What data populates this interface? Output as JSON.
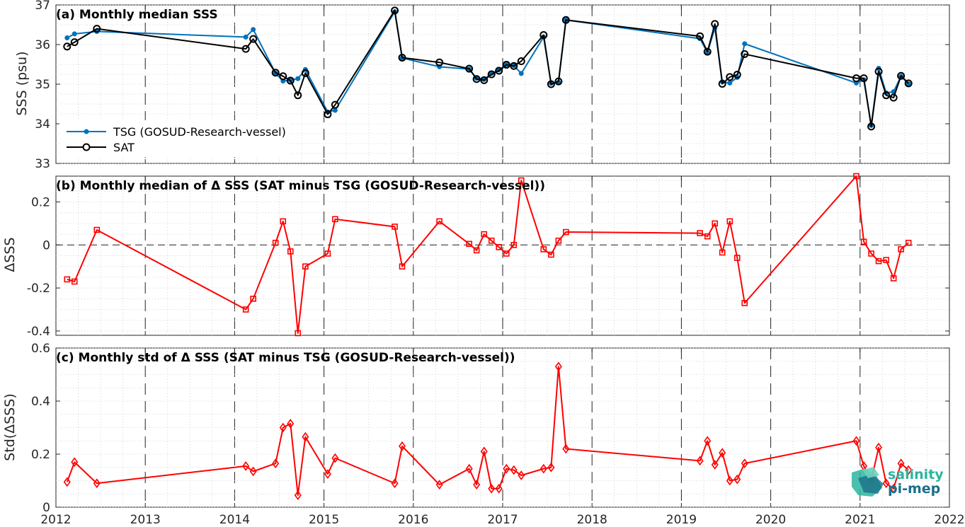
{
  "colors": {
    "tsg": "#0072BD",
    "sat": "#000000",
    "delta": "#FF0000",
    "logo_a": "#2bb5a0",
    "logo_b": "#1a6f8a"
  },
  "logo": {
    "line1": "salinity",
    "line2": "pi-mep"
  },
  "x_ticks": [
    "2012",
    "2013",
    "2014",
    "2015",
    "2016",
    "2017",
    "2018",
    "2019",
    "2020",
    "2021",
    "2022"
  ],
  "chart_data": [
    {
      "type": "line",
      "title": "(a) Monthly median SSS",
      "ylabel": "SSS (psu)",
      "xlim": [
        2012,
        2022
      ],
      "ylim": [
        33,
        37
      ],
      "yticks": [
        "33",
        "34",
        "35",
        "36",
        "37"
      ],
      "grid": true,
      "legend_position": "bottom-left",
      "series": [
        {
          "name": "TSG (GOSUD-Research-vessel)",
          "marker": "dot",
          "x": [
            2012.125,
            2012.208,
            2012.458,
            2014.125,
            2014.208,
            2014.458,
            2014.542,
            2014.625,
            2014.708,
            2014.792,
            2015.042,
            2015.125,
            2015.792,
            2015.875,
            2016.292,
            2016.625,
            2016.708,
            2016.792,
            2016.875,
            2016.958,
            2017.042,
            2017.125,
            2017.208,
            2017.458,
            2017.542,
            2017.625,
            2017.708,
            2019.208,
            2019.292,
            2019.375,
            2019.458,
            2019.542,
            2019.625,
            2019.708,
            2020.958,
            2021.042,
            2021.125,
            2021.208,
            2021.292,
            2021.375,
            2021.458,
            2021.542
          ],
          "y": [
            36.17,
            36.27,
            36.33,
            36.19,
            36.38,
            35.28,
            35.08,
            35.1,
            35.14,
            35.37,
            34.3,
            34.34,
            36.83,
            35.66,
            35.44,
            35.38,
            35.15,
            35.12,
            35.27,
            35.36,
            35.49,
            35.47,
            35.27,
            36.19,
            35.02,
            35.05,
            36.62,
            36.15,
            35.8,
            36.42,
            35.06,
            35.03,
            35.17,
            36.02,
            35.03,
            35.11,
            33.96,
            35.4,
            34.78,
            34.81,
            35.2,
            35.01
          ]
        },
        {
          "name": "SAT",
          "marker": "circle",
          "x": [
            2012.125,
            2012.208,
            2012.458,
            2014.125,
            2014.208,
            2014.458,
            2014.542,
            2014.625,
            2014.708,
            2014.792,
            2015.042,
            2015.125,
            2015.792,
            2015.875,
            2016.292,
            2016.625,
            2016.708,
            2016.792,
            2016.875,
            2016.958,
            2017.042,
            2017.125,
            2017.208,
            2017.458,
            2017.542,
            2017.625,
            2017.708,
            2019.208,
            2019.292,
            2019.375,
            2019.458,
            2019.542,
            2019.625,
            2019.708,
            2020.958,
            2021.042,
            2021.125,
            2021.208,
            2021.292,
            2021.375,
            2021.458,
            2021.542
          ],
          "y": [
            35.95,
            36.06,
            36.4,
            35.89,
            36.14,
            35.29,
            35.2,
            35.09,
            34.72,
            35.28,
            34.24,
            34.48,
            36.86,
            35.67,
            35.55,
            35.39,
            35.13,
            35.1,
            35.25,
            35.34,
            35.49,
            35.46,
            35.58,
            36.24,
            35.0,
            35.07,
            36.62,
            36.21,
            35.82,
            36.52,
            35.01,
            35.18,
            35.24,
            35.76,
            35.15,
            35.15,
            33.93,
            35.32,
            34.72,
            34.66,
            35.21,
            35.02
          ]
        }
      ]
    },
    {
      "type": "line",
      "title": "(b) Monthly median of Δ SSS (SAT minus TSG (GOSUD-Research-vessel))",
      "ylabel": "ΔSSS",
      "xlim": [
        2012,
        2022
      ],
      "ylim": [
        -0.42,
        0.32
      ],
      "yticks": [
        "-0.4",
        "-0.2",
        "0",
        "0.2"
      ],
      "grid": true,
      "reference_line": 0,
      "series": [
        {
          "marker": "square",
          "x": [
            2012.125,
            2012.208,
            2012.458,
            2014.125,
            2014.208,
            2014.458,
            2014.542,
            2014.625,
            2014.708,
            2014.792,
            2015.042,
            2015.125,
            2015.792,
            2015.875,
            2016.292,
            2016.625,
            2016.708,
            2016.792,
            2016.875,
            2016.958,
            2017.042,
            2017.125,
            2017.208,
            2017.458,
            2017.542,
            2017.625,
            2017.708,
            2019.208,
            2019.292,
            2019.375,
            2019.458,
            2019.542,
            2019.625,
            2019.708,
            2020.958,
            2021.042,
            2021.125,
            2021.208,
            2021.292,
            2021.375,
            2021.458,
            2021.542
          ],
          "y": [
            -0.16,
            -0.17,
            0.07,
            -0.3,
            -0.25,
            0.01,
            0.11,
            -0.03,
            -0.41,
            -0.1,
            -0.04,
            0.12,
            0.085,
            -0.1,
            0.11,
            0.005,
            -0.025,
            0.05,
            0.02,
            -0.01,
            -0.04,
            0.0,
            0.3,
            -0.02,
            -0.045,
            0.02,
            0.06,
            0.055,
            0.04,
            0.1,
            -0.035,
            0.11,
            -0.06,
            -0.27,
            0.32,
            0.015,
            -0.04,
            -0.075,
            -0.07,
            -0.155,
            -0.02,
            0.01
          ]
        }
      ]
    },
    {
      "type": "line",
      "title": "(c) Monthly std of Δ SSS (SAT minus TSG (GOSUD-Research-vessel))",
      "ylabel": "Std(ΔSSS)",
      "xlim": [
        2012,
        2022
      ],
      "ylim": [
        0,
        0.6
      ],
      "yticks": [
        "0",
        "0.2",
        "0.4",
        "0.6"
      ],
      "grid": true,
      "series": [
        {
          "marker": "diamond",
          "x": [
            2012.125,
            2012.208,
            2012.458,
            2014.125,
            2014.208,
            2014.458,
            2014.542,
            2014.625,
            2014.708,
            2014.792,
            2015.042,
            2015.125,
            2015.792,
            2015.875,
            2016.292,
            2016.625,
            2016.708,
            2016.792,
            2016.875,
            2016.958,
            2017.042,
            2017.125,
            2017.208,
            2017.458,
            2017.542,
            2017.625,
            2017.708,
            2019.208,
            2019.292,
            2019.375,
            2019.458,
            2019.542,
            2019.625,
            2019.708,
            2020.958,
            2021.042,
            2021.125,
            2021.208,
            2021.292,
            2021.375,
            2021.458,
            2021.542
          ],
          "y": [
            0.095,
            0.17,
            0.09,
            0.155,
            0.135,
            0.165,
            0.3,
            0.315,
            0.045,
            0.265,
            0.125,
            0.185,
            0.09,
            0.23,
            0.085,
            0.145,
            0.085,
            0.21,
            0.07,
            0.07,
            0.145,
            0.14,
            0.12,
            0.145,
            0.15,
            0.53,
            0.22,
            0.175,
            0.25,
            0.16,
            0.205,
            0.1,
            0.105,
            0.165,
            0.25,
            0.155,
            0.1,
            0.225,
            0.09,
            0.07,
            0.165,
            0.14
          ]
        }
      ]
    }
  ]
}
